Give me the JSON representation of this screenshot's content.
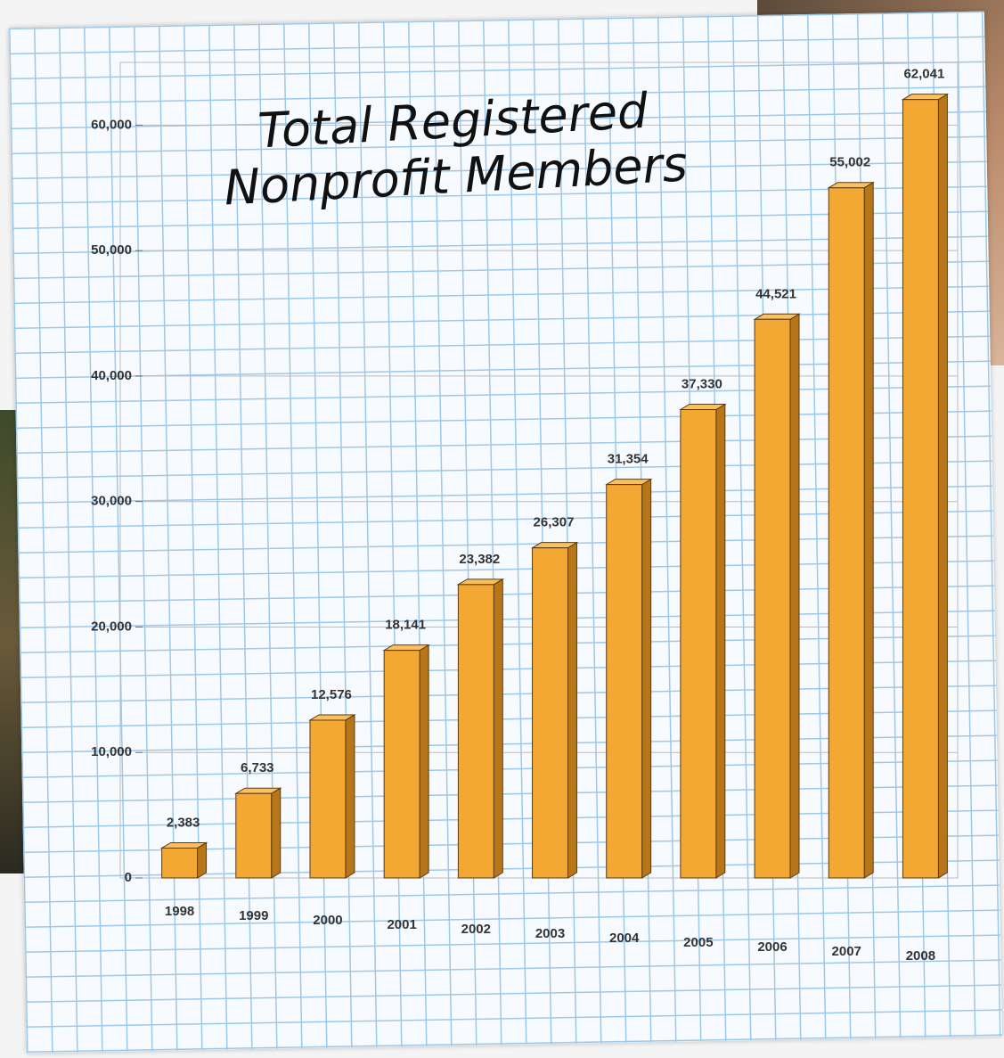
{
  "chart_data": {
    "type": "bar",
    "title": "Total Registered Nonprofit Members",
    "categories": [
      "1998",
      "1999",
      "2000",
      "2001",
      "2002",
      "2003",
      "2004",
      "2005",
      "2006",
      "2007",
      "2008"
    ],
    "values": [
      2383,
      6733,
      12576,
      18141,
      23382,
      26307,
      31354,
      37330,
      44521,
      55002,
      62041
    ],
    "value_labels": [
      "2,383",
      "6,733",
      "12,576",
      "18,141",
      "23,382",
      "26,307",
      "31,354",
      "37,330",
      "44,521",
      "55,002",
      "62,041"
    ],
    "color": "#f2a833",
    "ylim": [
      0,
      65000
    ],
    "yticks": [
      0,
      {
        "value": 10000,
        "label": "10,000"
      },
      {
        "value": 20000,
        "label": "20,000"
      },
      {
        "value": 30000,
        "label": "30,000"
      },
      {
        "value": 40000,
        "label": "40,000"
      },
      {
        "value": 50000,
        "label": "50,000"
      },
      {
        "value": 60000,
        "label": "60,000"
      }
    ],
    "grid": true
  }
}
